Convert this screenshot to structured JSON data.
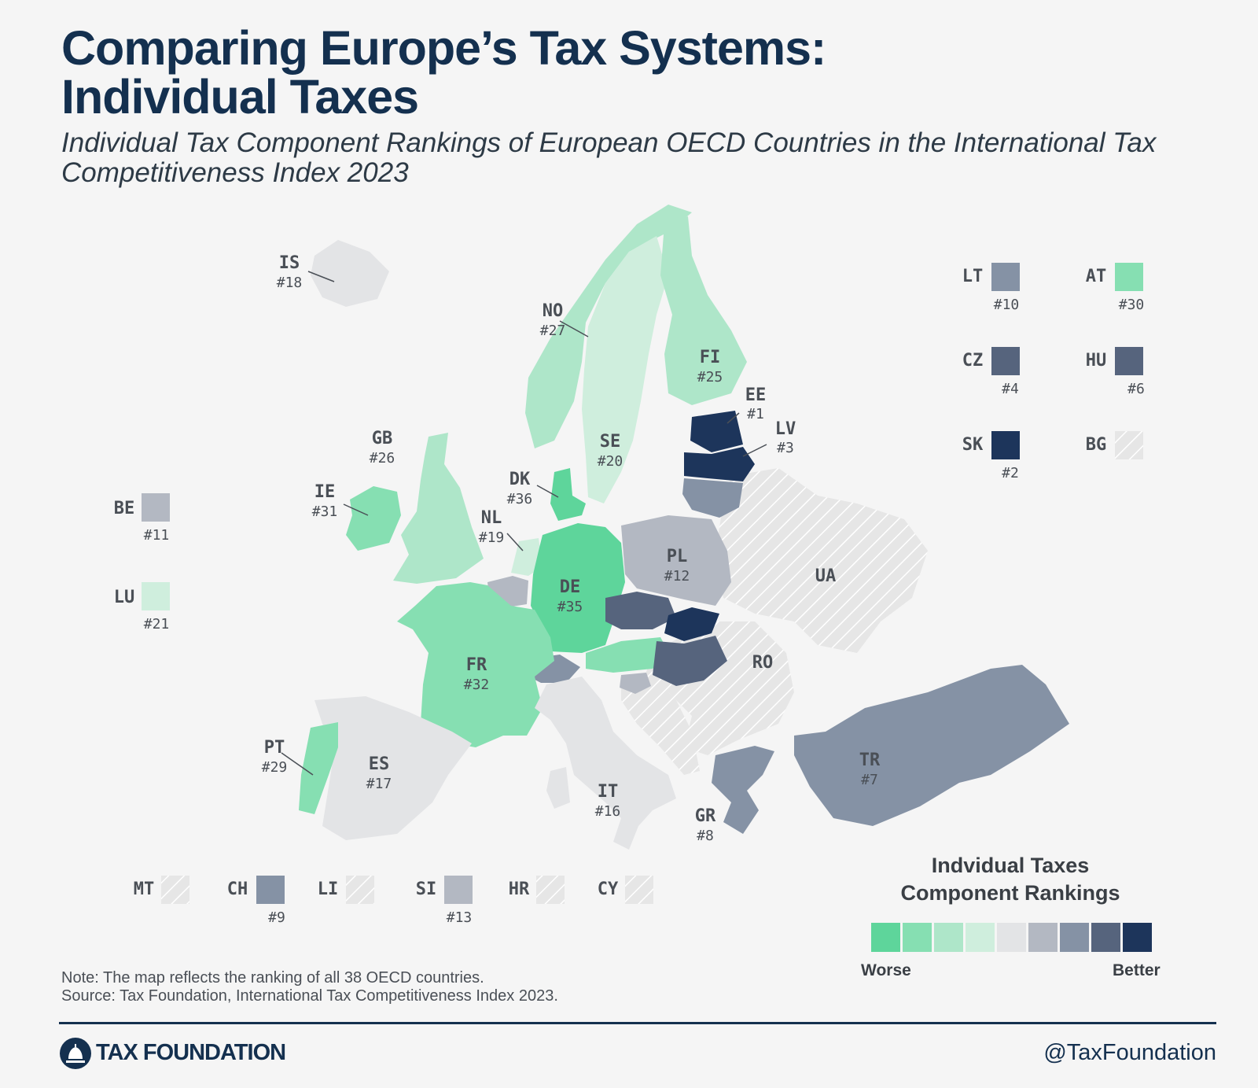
{
  "title_line1": "Comparing Europe’s Tax Systems:",
  "title_line2": "Individual Taxes",
  "subtitle": "Individual Tax Component Rankings of European OECD Countries in the International Tax Competitiveness Index 2023",
  "colors": {
    "scale": [
      "#5ed59b",
      "#86dfb2",
      "#aee6c9",
      "#cfeedd",
      "#e3e4e6",
      "#b3b8c2",
      "#8592a5",
      "#56647d",
      "#1d355b"
    ],
    "non_oecd": "#e6e6e6",
    "hatch": "#ffffff",
    "text": "#4a4f56",
    "brand": "#14304f"
  },
  "chart_data": {
    "type": "choropleth",
    "regions": [
      {
        "code": "IS",
        "rank": "#18",
        "bucket": 4
      },
      {
        "code": "NO",
        "rank": "#27",
        "bucket": 2
      },
      {
        "code": "SE",
        "rank": "#20",
        "bucket": 3
      },
      {
        "code": "FI",
        "rank": "#25",
        "bucket": 2
      },
      {
        "code": "EE",
        "rank": "#1",
        "bucket": 8
      },
      {
        "code": "LV",
        "rank": "#3",
        "bucket": 8
      },
      {
        "code": "GB",
        "rank": "#26",
        "bucket": 2
      },
      {
        "code": "IE",
        "rank": "#31",
        "bucket": 1
      },
      {
        "code": "DK",
        "rank": "#36",
        "bucket": 0
      },
      {
        "code": "NL",
        "rank": "#19",
        "bucket": 3
      },
      {
        "code": "DE",
        "rank": "#35",
        "bucket": 0
      },
      {
        "code": "PL",
        "rank": "#12",
        "bucket": 5
      },
      {
        "code": "FR",
        "rank": "#32",
        "bucket": 1
      },
      {
        "code": "PT",
        "rank": "#29",
        "bucket": 1
      },
      {
        "code": "ES",
        "rank": "#17",
        "bucket": 4
      },
      {
        "code": "IT",
        "rank": "#16",
        "bucket": 4
      },
      {
        "code": "GR",
        "rank": "#8",
        "bucket": 6
      },
      {
        "code": "TR",
        "rank": "#7",
        "bucket": 6
      },
      {
        "code": "UA",
        "rank": null,
        "bucket": null
      },
      {
        "code": "RO",
        "rank": null,
        "bucket": null
      }
    ],
    "side_legend": [
      {
        "code": "LT",
        "rank": "#10",
        "bucket": 6
      },
      {
        "code": "AT",
        "rank": "#30",
        "bucket": 1
      },
      {
        "code": "CZ",
        "rank": "#4",
        "bucket": 7
      },
      {
        "code": "HU",
        "rank": "#6",
        "bucket": 7
      },
      {
        "code": "SK",
        "rank": "#2",
        "bucket": 8
      },
      {
        "code": "BG",
        "rank": null,
        "bucket": null
      },
      {
        "code": "BE",
        "rank": "#11",
        "bucket": 5
      },
      {
        "code": "LU",
        "rank": "#21",
        "bucket": 3
      },
      {
        "code": "MT",
        "rank": null,
        "bucket": null
      },
      {
        "code": "CH",
        "rank": "#9",
        "bucket": 6
      },
      {
        "code": "LI",
        "rank": null,
        "bucket": null
      },
      {
        "code": "SI",
        "rank": "#13",
        "bucket": 5
      },
      {
        "code": "HR",
        "rank": null,
        "bucket": null
      },
      {
        "code": "CY",
        "rank": null,
        "bucket": null
      }
    ]
  },
  "legend": {
    "title_line1": "Indvidual Taxes",
    "title_line2": "Component Rankings",
    "worse": "Worse",
    "better": "Better"
  },
  "note": "Note: The map reflects the ranking of all 38 OECD countries.",
  "source": "Source: Tax Foundation, International Tax Competitiveness Index 2023.",
  "footer": {
    "brand": "TAX FOUNDATION",
    "handle": "@TaxFoundation"
  }
}
